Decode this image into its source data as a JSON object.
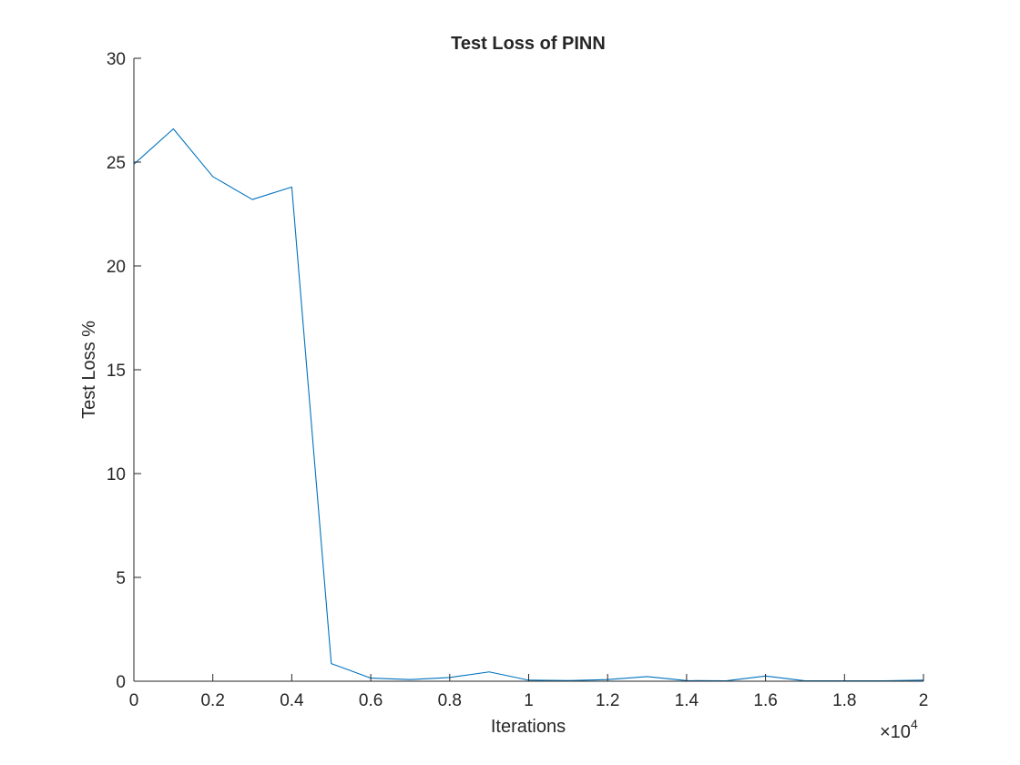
{
  "chart_data": {
    "type": "line",
    "title": "Test Loss of PINN",
    "xlabel": "Iterations",
    "ylabel": "Test Loss %",
    "x_multiplier": "×10",
    "x_multiplier_exp": "4",
    "xlim": [
      0,
      20000
    ],
    "ylim": [
      0,
      30
    ],
    "x_ticks": [
      0,
      2000,
      4000,
      6000,
      8000,
      10000,
      12000,
      14000,
      16000,
      18000,
      20000
    ],
    "x_tick_labels": [
      "0",
      "0.2",
      "0.4",
      "0.6",
      "0.8",
      "1",
      "1.2",
      "1.4",
      "1.6",
      "1.8",
      "2"
    ],
    "y_ticks": [
      0,
      5,
      10,
      15,
      20,
      25,
      30
    ],
    "y_tick_labels": [
      "0",
      "5",
      "10",
      "15",
      "20",
      "25",
      "30"
    ],
    "grid": false,
    "series": [
      {
        "color": "#0072BD",
        "x": [
          0,
          1000,
          2000,
          3000,
          4000,
          5000,
          6000,
          7000,
          8000,
          9000,
          10000,
          11000,
          12000,
          13000,
          14000,
          15000,
          16000,
          17000,
          18000,
          19000,
          20000
        ],
        "y": [
          24.9,
          26.6,
          24.3,
          23.2,
          23.8,
          0.85,
          0.15,
          0.08,
          0.18,
          0.45,
          0.05,
          0.03,
          0.08,
          0.22,
          0.03,
          0.02,
          0.25,
          0.02,
          0.02,
          0.02,
          0.05
        ]
      }
    ]
  }
}
